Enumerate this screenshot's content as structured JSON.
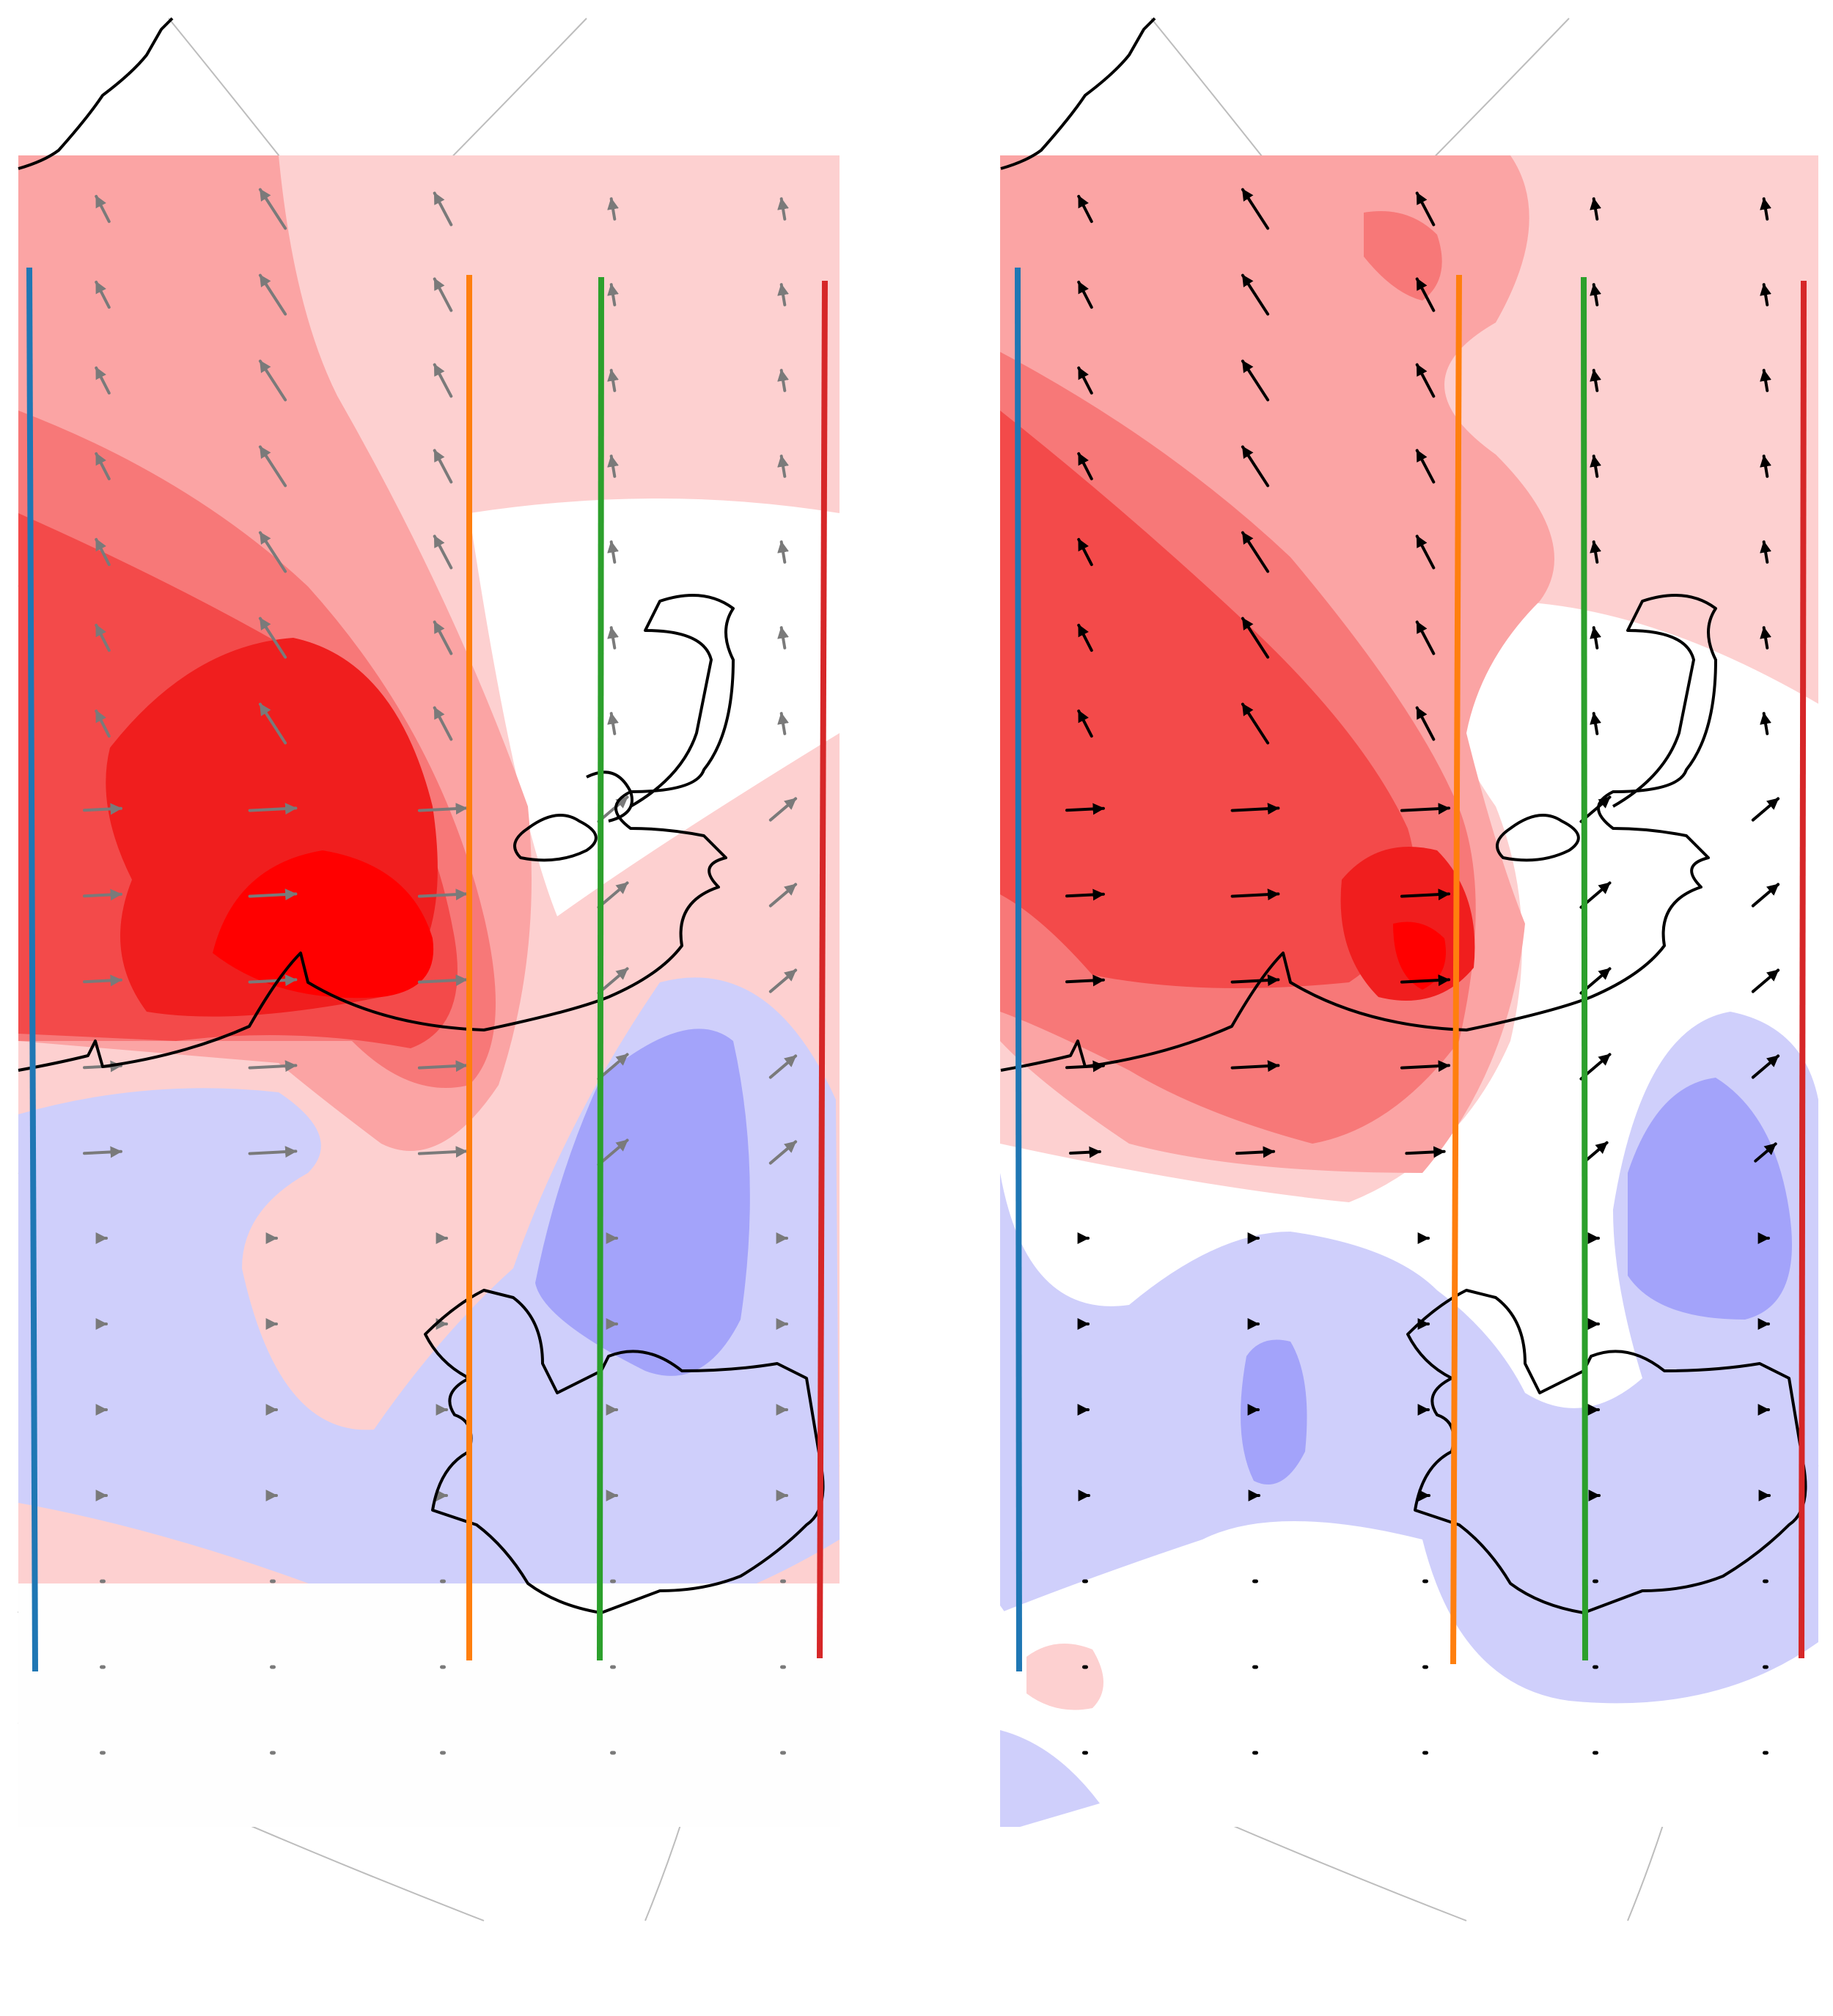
{
  "figure": {
    "panels": [
      {
        "id": "left",
        "arrow_color": "#7a7a7a",
        "overlay_arrow_color": "#7a7a7a"
      },
      {
        "id": "right",
        "arrow_color": "#000000",
        "overlay_arrow_color": "#7a7a7a"
      }
    ]
  },
  "colors": {
    "red_levels": [
      "#fdd0d0",
      "#fba4a4",
      "#f77878",
      "#f34a4a",
      "#f01e1e",
      "#ff0000"
    ],
    "blue_levels": [
      "#cfcffb",
      "#a3a3fa"
    ],
    "coast": "#000000",
    "graticule": "#bdbdbd",
    "transects": {
      "blue": "#1f77b4",
      "orange": "#ff7f0e",
      "green": "#2ca02c",
      "red": "#d62728"
    }
  },
  "transects": [
    {
      "name": "blue",
      "color": "#1f77b4"
    },
    {
      "name": "orange",
      "color": "#ff7f0e"
    },
    {
      "name": "green",
      "color": "#2ca02c"
    },
    {
      "name": "red",
      "color": "#d62728"
    }
  ],
  "icons": [
    "coastline-greenland",
    "coastline-iceland",
    "wind-vector-arrows"
  ]
}
